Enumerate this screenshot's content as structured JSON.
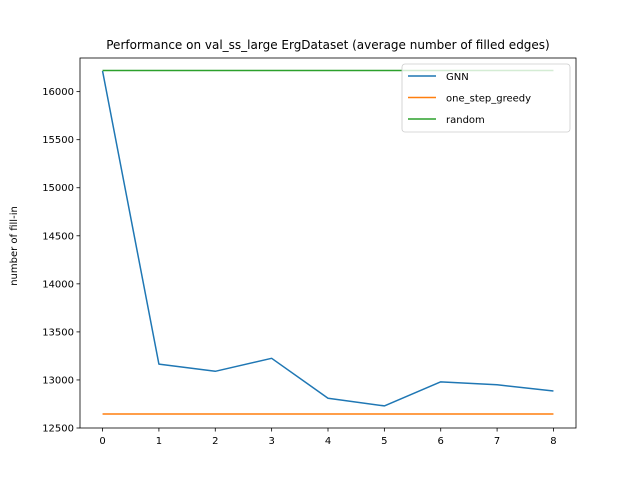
{
  "chart_data": {
    "type": "line",
    "title": "Performance on val_ss_large ErgDataset (average number of filled edges)",
    "xlabel": "",
    "ylabel": "number of fill-in",
    "x": [
      0,
      1,
      2,
      3,
      4,
      5,
      6,
      7,
      8
    ],
    "xticks": [
      "0",
      "1",
      "2",
      "3",
      "4",
      "5",
      "6",
      "7",
      "8"
    ],
    "yticks": [
      "12500",
      "13000",
      "13500",
      "14000",
      "14500",
      "15000",
      "15500",
      "16000"
    ],
    "xlim": [
      -0.4,
      8.4
    ],
    "ylim": [
      12500,
      16350
    ],
    "grid": false,
    "legend_position": "top-right",
    "series": [
      {
        "name": "GNN",
        "color": "#1f77b4",
        "values": [
          16215,
          13165,
          13090,
          13225,
          12810,
          12730,
          12980,
          12950,
          12885
        ]
      },
      {
        "name": "one_step_greedy",
        "color": "#ff7f0e",
        "values": [
          12645,
          12645,
          12645,
          12645,
          12645,
          12645,
          12645,
          12645,
          12645
        ]
      },
      {
        "name": "random",
        "color": "#2ca02c",
        "values": [
          16220,
          16220,
          16220,
          16220,
          16220,
          16220,
          16220,
          16220,
          16220
        ]
      }
    ]
  }
}
